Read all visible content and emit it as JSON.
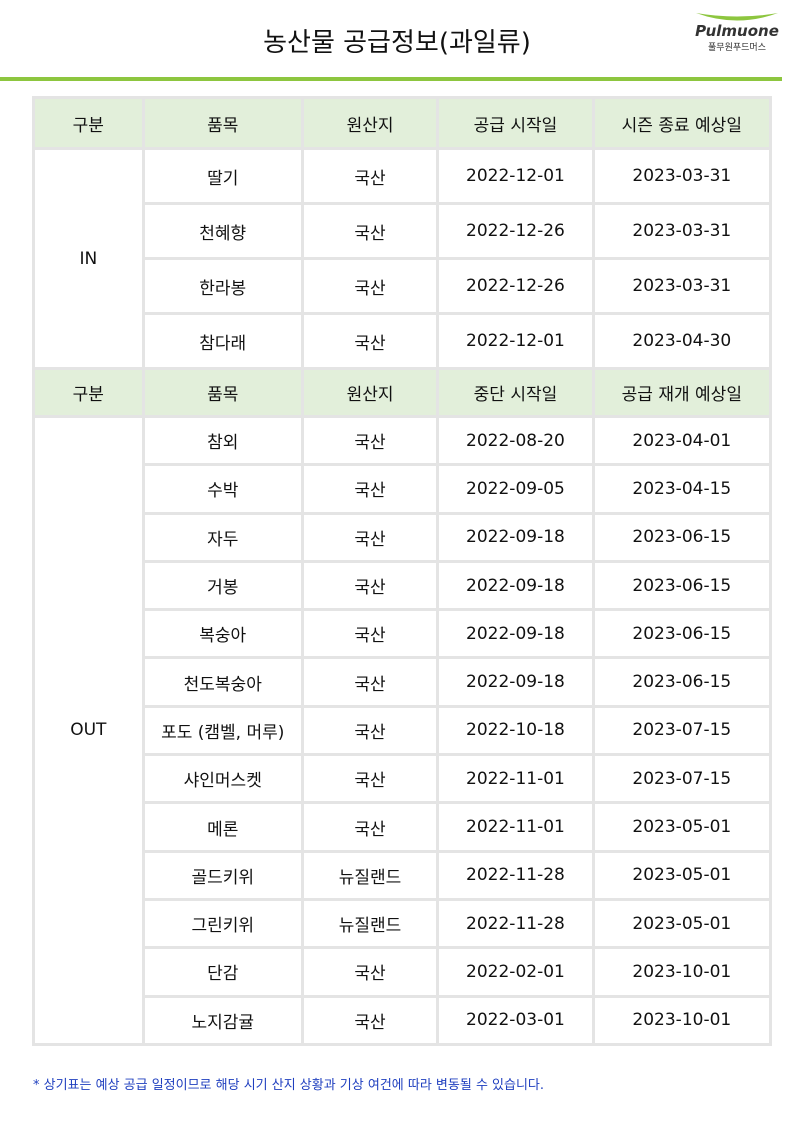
{
  "title": "농산물 공급정보(과일류)",
  "logo": {
    "en": "Pulmuone",
    "ko": "풀무원푸드머스",
    "color": "#8dc63f"
  },
  "in_header": [
    "구분",
    "품목",
    "원산지",
    "공급 시작일",
    "시즌 종료 예상일"
  ],
  "in_label": "IN",
  "in_rows": [
    [
      "딸기",
      "국산",
      "2022-12-01",
      "2023-03-31"
    ],
    [
      "천혜향",
      "국산",
      "2022-12-26",
      "2023-03-31"
    ],
    [
      "한라봉",
      "국산",
      "2022-12-26",
      "2023-03-31"
    ],
    [
      "참다래",
      "국산",
      "2022-12-01",
      "2023-04-30"
    ]
  ],
  "out_header": [
    "구분",
    "품목",
    "원산지",
    "중단 시작일",
    "공급 재개 예상일"
  ],
  "out_label": "OUT",
  "out_rows": [
    [
      "참외",
      "국산",
      "2022-08-20",
      "2023-04-01"
    ],
    [
      "수박",
      "국산",
      "2022-09-05",
      "2023-04-15"
    ],
    [
      "자두",
      "국산",
      "2022-09-18",
      "2023-06-15"
    ],
    [
      "거봉",
      "국산",
      "2022-09-18",
      "2023-06-15"
    ],
    [
      "복숭아",
      "국산",
      "2022-09-18",
      "2023-06-15"
    ],
    [
      "천도복숭아",
      "국산",
      "2022-09-18",
      "2023-06-15"
    ],
    [
      "포도 (캠벨, 머루)",
      "국산",
      "2022-10-18",
      "2023-07-15"
    ],
    [
      "샤인머스켓",
      "국산",
      "2022-11-01",
      "2023-07-15"
    ],
    [
      "메론",
      "국산",
      "2022-11-01",
      "2023-05-01"
    ],
    [
      "골드키위",
      "뉴질랜드",
      "2022-11-28",
      "2023-05-01"
    ],
    [
      "그린키위",
      "뉴질랜드",
      "2022-11-28",
      "2023-05-01"
    ],
    [
      "단감",
      "국산",
      "2022-02-01",
      "2023-10-01"
    ],
    [
      "노지감귤",
      "국산",
      "2022-03-01",
      "2023-10-01"
    ]
  ],
  "note": "* 상기표는 예상 공급 일정이므로 해당 시기 산지 상황과 기상 여건에 따라 변동될 수 있습니다."
}
